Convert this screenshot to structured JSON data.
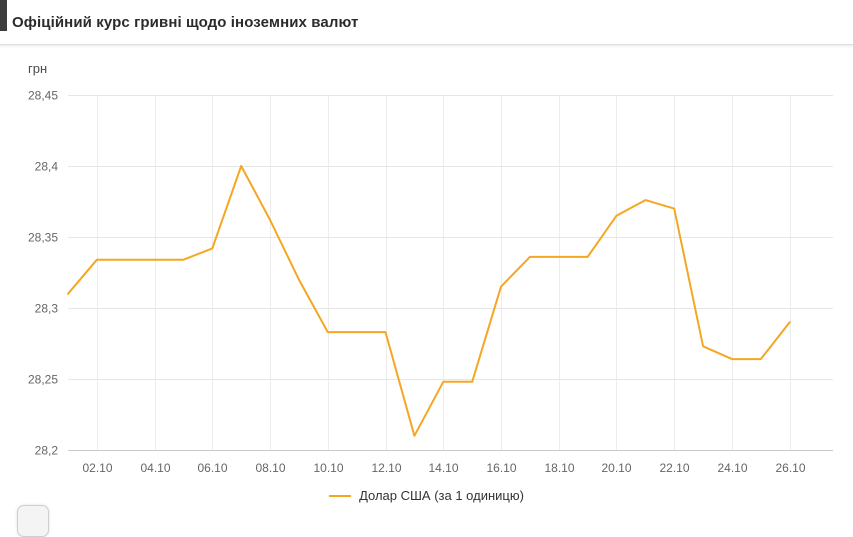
{
  "header": {
    "title": "Офіційний курс гривні щодо іноземних валют"
  },
  "chart_data": {
    "type": "line",
    "title": "Офіційний курс гривні щодо іноземних валют",
    "ylabel": "грн",
    "xlabel": "",
    "ylim": [
      28.2,
      28.45
    ],
    "grid": true,
    "legend_position": "bottom",
    "y_ticks": [
      {
        "value": 28.45,
        "label": "28,45"
      },
      {
        "value": 28.4,
        "label": "28,4"
      },
      {
        "value": 28.35,
        "label": "28,35"
      },
      {
        "value": 28.3,
        "label": "28,3"
      },
      {
        "value": 28.25,
        "label": "28,25"
      },
      {
        "value": 28.2,
        "label": "28,2"
      }
    ],
    "x": [
      "01.10",
      "02.10",
      "03.10",
      "04.10",
      "05.10",
      "06.10",
      "07.10",
      "08.10",
      "09.10",
      "10.10",
      "11.10",
      "12.10",
      "13.10",
      "14.10",
      "15.10",
      "16.10",
      "17.10",
      "18.10",
      "19.10",
      "20.10",
      "21.10",
      "22.10",
      "23.10",
      "24.10",
      "25.10",
      "26.10"
    ],
    "x_tick_labels": [
      "02.10",
      "04.10",
      "06.10",
      "08.10",
      "10.10",
      "12.10",
      "14.10",
      "16.10",
      "18.10",
      "20.10",
      "22.10",
      "24.10",
      "26.10"
    ],
    "series": [
      {
        "name": "Долар США (за 1 одиницю)",
        "color": "#f5a623",
        "values": [
          28.31,
          28.334,
          28.334,
          28.334,
          28.334,
          28.342,
          28.4,
          28.362,
          28.32,
          28.283,
          28.283,
          28.283,
          28.21,
          28.248,
          28.248,
          28.315,
          28.336,
          28.336,
          28.336,
          28.365,
          28.376,
          28.37,
          28.273,
          28.264,
          28.264,
          28.29
        ]
      }
    ]
  }
}
